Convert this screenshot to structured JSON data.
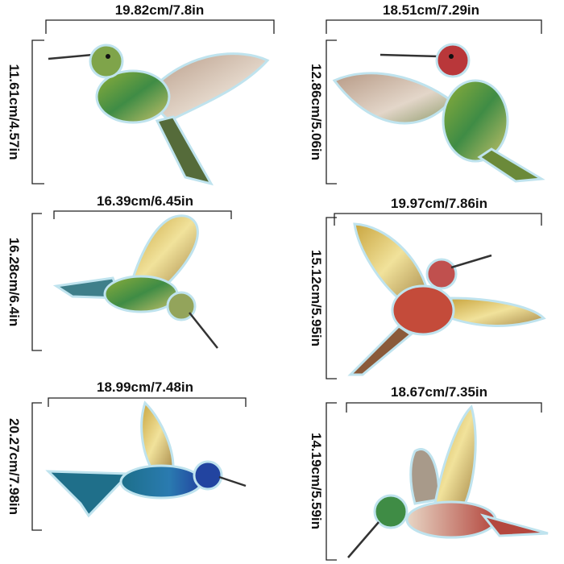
{
  "stickers": [
    {
      "width": "19.82cm/7.8in",
      "height": "11.61cm/4.57in"
    },
    {
      "width": "18.51cm/7.29in",
      "height": "12.86cm/5.06in"
    },
    {
      "width": "16.39cm/6.45in",
      "height": "16.28cm/6.4in"
    },
    {
      "width": "19.97cm/7.86in",
      "height": "15.12cm/5.95in"
    },
    {
      "width": "18.99cm/7.48in",
      "height": "20.27cm/7.98in"
    },
    {
      "width": "18.67cm/7.35in",
      "height": "14.19cm/5.59in"
    }
  ]
}
